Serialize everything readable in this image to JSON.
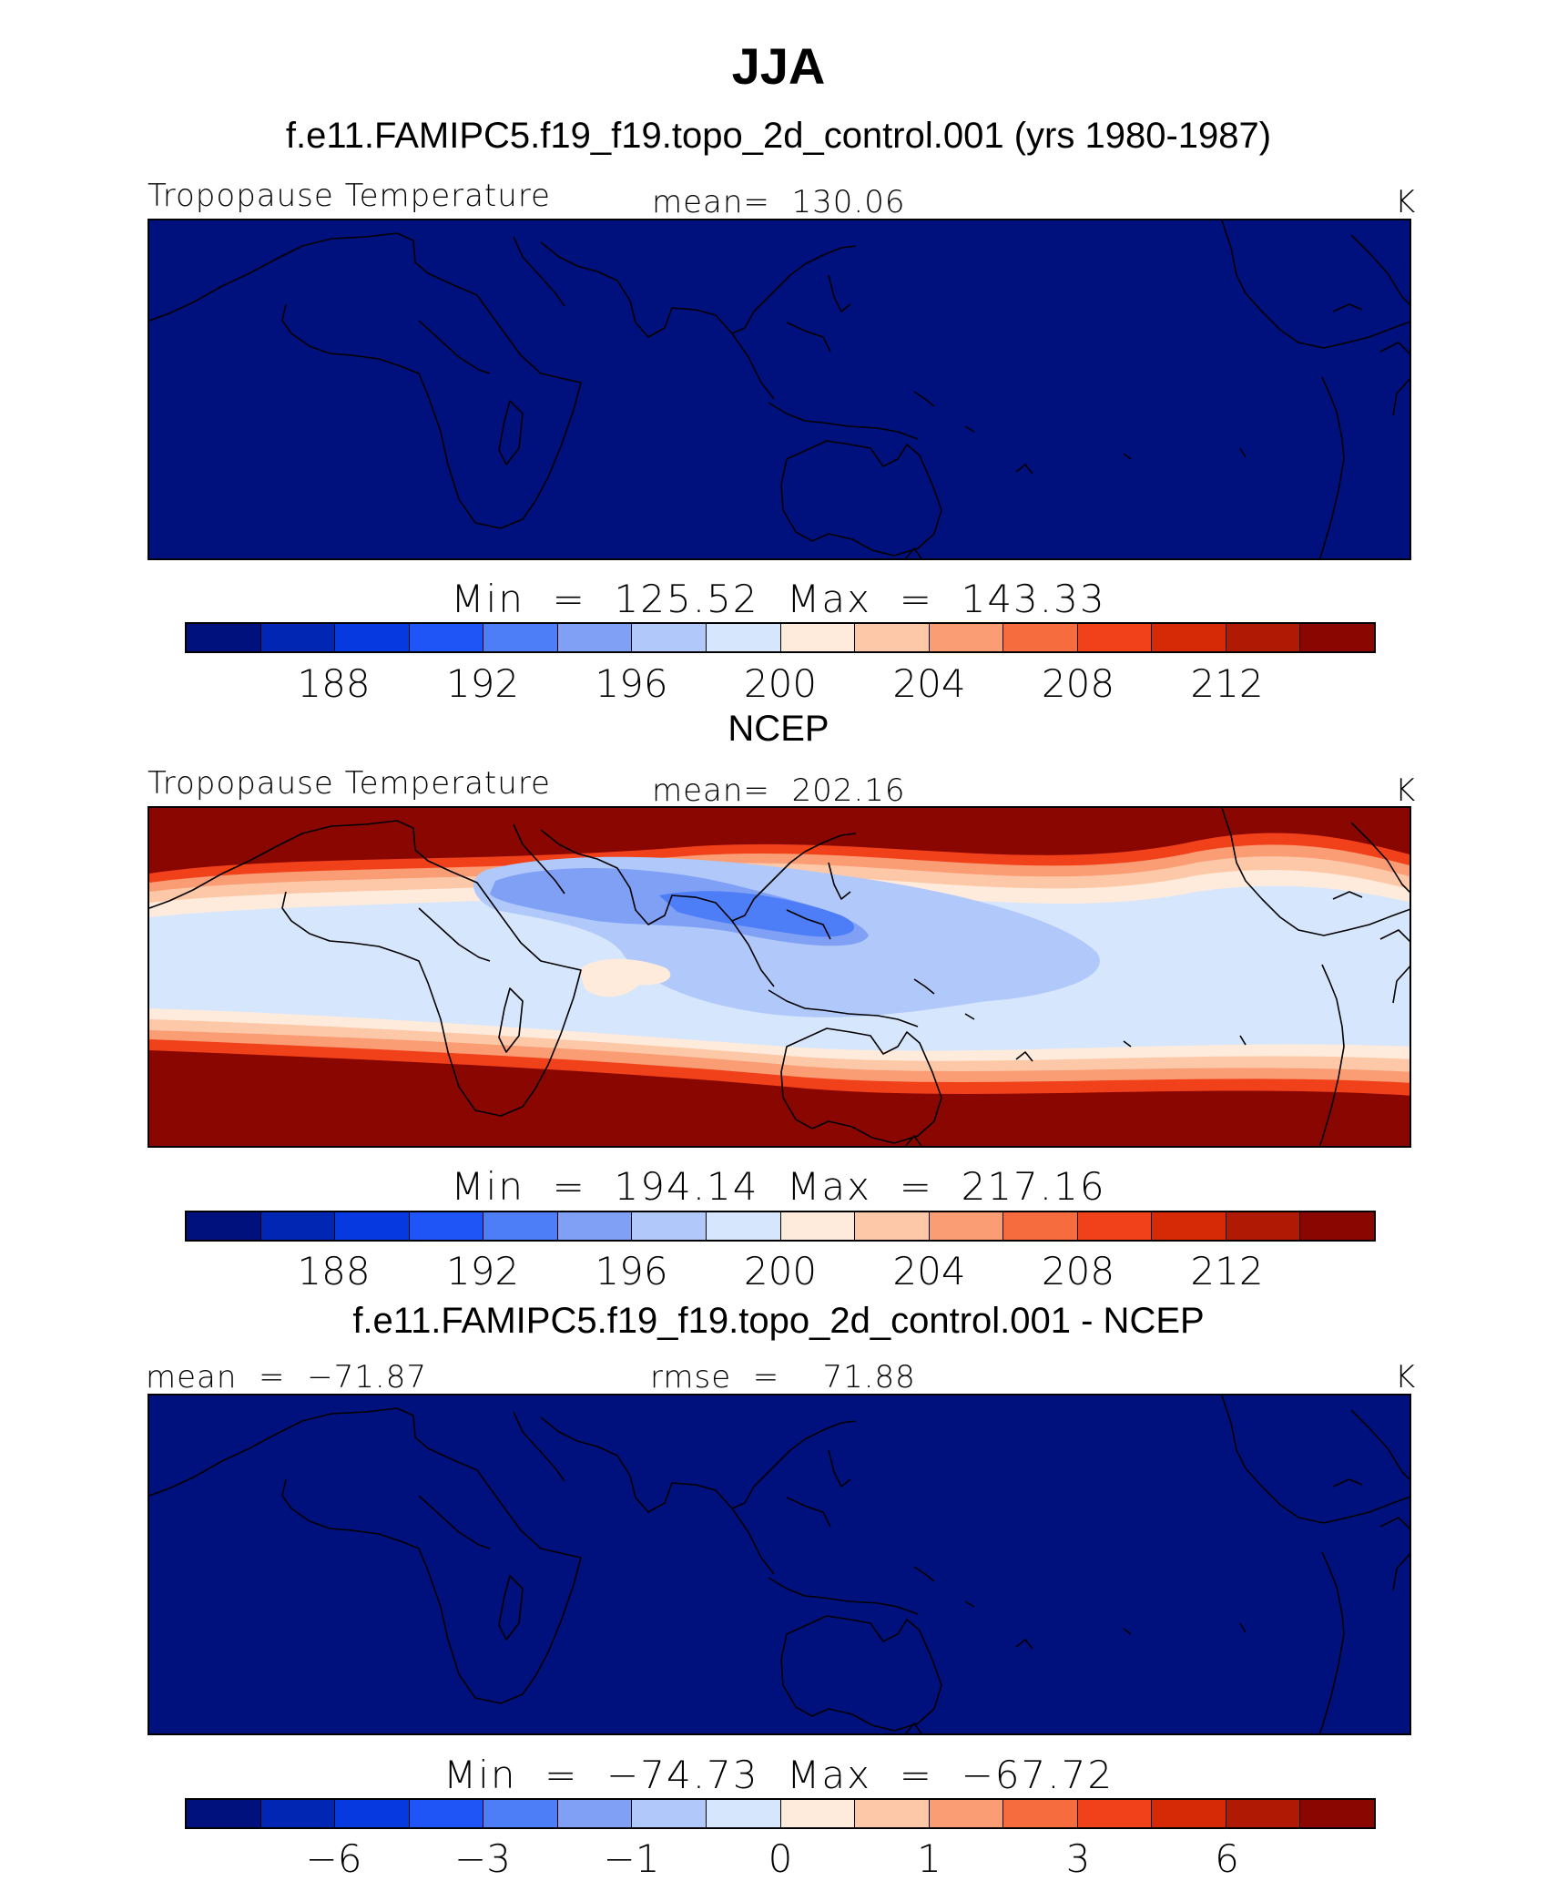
{
  "figure": {
    "title": "JJA"
  },
  "palette": [
    "#00117d",
    "#0226b4",
    "#0639e0",
    "#1f55f7",
    "#4d7df7",
    "#7fa0f5",
    "#b0c8fa",
    "#d6e6fc",
    "#feebdc",
    "#fdc8a8",
    "#fa9c74",
    "#f76c3f",
    "#f0411a",
    "#d62a07",
    "#b01a04",
    "#8a0601"
  ],
  "panels": [
    {
      "title": "f.e11.FAMIPC5.f19_f19.topo_2d_control.001 (yrs 1980-1987)",
      "left_label": "Tropopause Temperature",
      "center_label": "mean=  130.06",
      "units": "K",
      "minmax": "Min  =  125.52  Max  =  143.33",
      "field": "uniform",
      "ticks": [
        "188",
        "192",
        "196",
        "200",
        "204",
        "208",
        "212"
      ]
    },
    {
      "title": "NCEP",
      "left_label": "Tropopause Temperature",
      "center_label": "mean=  202.16",
      "units": "K",
      "minmax": "Min  =  194.14  Max  =  217.16",
      "field": "ncep",
      "ticks": [
        "188",
        "192",
        "196",
        "200",
        "204",
        "208",
        "212"
      ]
    },
    {
      "title": "f.e11.FAMIPC5.f19_f19.topo_2d_control.001 - NCEP",
      "left_label": "mean  =  −71.87",
      "center_label": "rmse  =    71.88",
      "units": "K",
      "minmax": "Min  =  −74.73  Max  =  −67.72",
      "field": "uniform",
      "ticks": [
        "−6",
        "−3",
        "−1",
        "0",
        "1",
        "3",
        "6"
      ]
    }
  ]
}
